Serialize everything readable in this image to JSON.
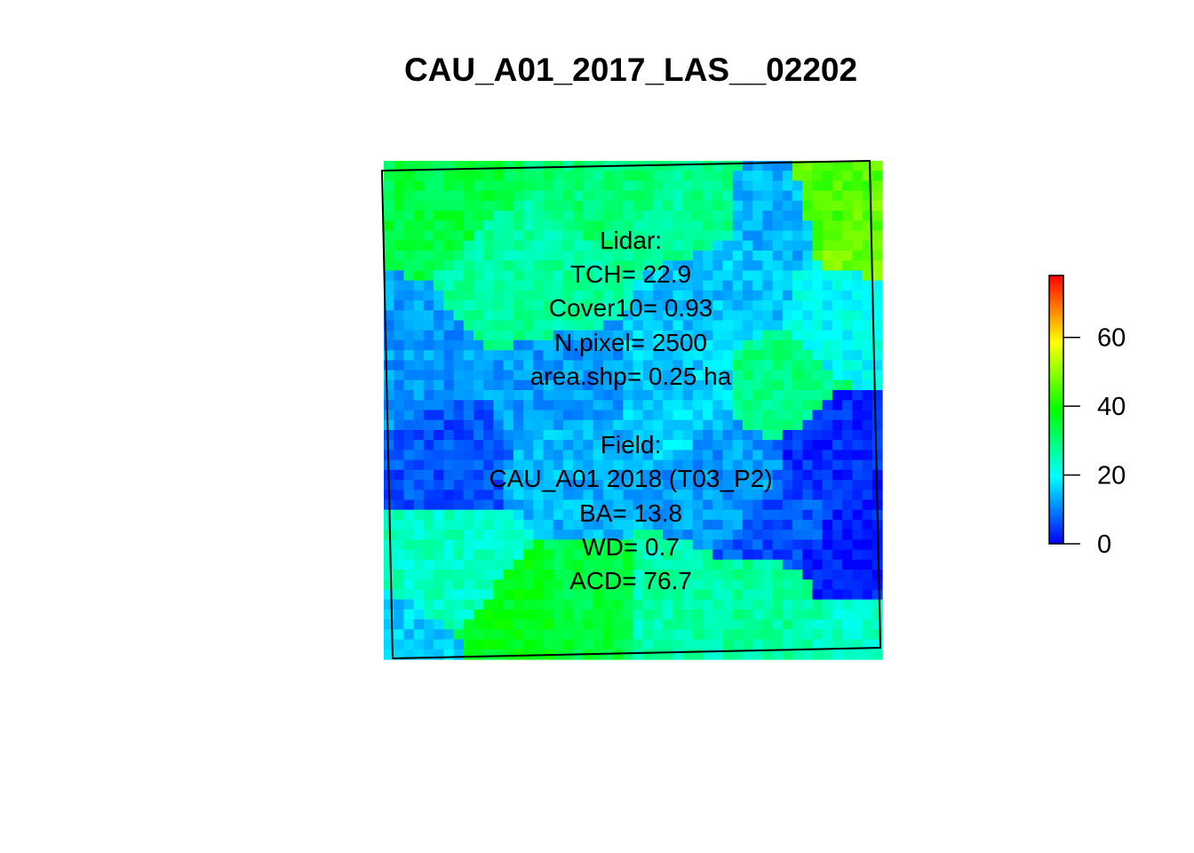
{
  "chart_data": {
    "type": "heatmap",
    "title": "CAU_A01_2017_LAS__02202",
    "grid_size": [
      50,
      50
    ],
    "value_range": [
      0,
      78
    ],
    "colormap": [
      "#0000ff",
      "#00ffff",
      "#00ff00",
      "#ffff00",
      "#ff0000"
    ],
    "colorbar": {
      "ticks": [
        0,
        20,
        40,
        60
      ],
      "tick_labels": [
        "0",
        "20",
        "40",
        "60"
      ],
      "min": 0,
      "max": 78
    },
    "annotations": {
      "lidar_header": "Lidar:",
      "tch": "TCH= 22.9",
      "cover10": "Cover10= 0.93",
      "npixel": "N.pixel= 2500",
      "area": "area.shp= 0.25 ha",
      "field_header": "Field:",
      "plot_id": "CAU_A01 2018 (T03_P2)",
      "ba": "BA= 13.8",
      "wd": "WD= 0.7",
      "acd": "ACD= 76.7"
    },
    "regions": [
      {
        "c": 0.1,
        "r": 0.02,
        "v": 34
      },
      {
        "c": 0.45,
        "r": 0.02,
        "v": 30
      },
      {
        "c": 0.3,
        "r": 0.25,
        "v": 27
      },
      {
        "c": 0.62,
        "r": 0.08,
        "v": 28
      },
      {
        "c": 0.78,
        "r": 0.1,
        "v": 14
      },
      {
        "c": 0.9,
        "r": 0.07,
        "v": 45
      },
      {
        "c": 0.97,
        "r": 0.13,
        "v": 47
      },
      {
        "c": 0.7,
        "r": 0.26,
        "v": 15
      },
      {
        "c": 0.92,
        "r": 0.32,
        "v": 20
      },
      {
        "c": 0.8,
        "r": 0.45,
        "v": 29
      },
      {
        "c": 0.05,
        "r": 0.45,
        "v": 12
      },
      {
        "c": 0.1,
        "r": 0.58,
        "v": 6
      },
      {
        "c": 0.35,
        "r": 0.46,
        "v": 12
      },
      {
        "c": 0.4,
        "r": 0.6,
        "v": 14
      },
      {
        "c": 0.6,
        "r": 0.46,
        "v": 16
      },
      {
        "c": 0.7,
        "r": 0.64,
        "v": 12
      },
      {
        "c": 0.9,
        "r": 0.58,
        "v": 3
      },
      {
        "c": 0.93,
        "r": 0.8,
        "v": 2
      },
      {
        "c": 0.8,
        "r": 0.72,
        "v": 6
      },
      {
        "c": 0.12,
        "r": 0.82,
        "v": 24
      },
      {
        "c": 0.28,
        "r": 0.95,
        "v": 37
      },
      {
        "c": 0.42,
        "r": 0.93,
        "v": 34
      },
      {
        "c": 0.58,
        "r": 0.92,
        "v": 26
      },
      {
        "c": 0.78,
        "r": 0.9,
        "v": 27
      },
      {
        "c": 0.95,
        "r": 0.96,
        "v": 24
      },
      {
        "c": 0.02,
        "r": 0.98,
        "v": 16
      }
    ]
  }
}
